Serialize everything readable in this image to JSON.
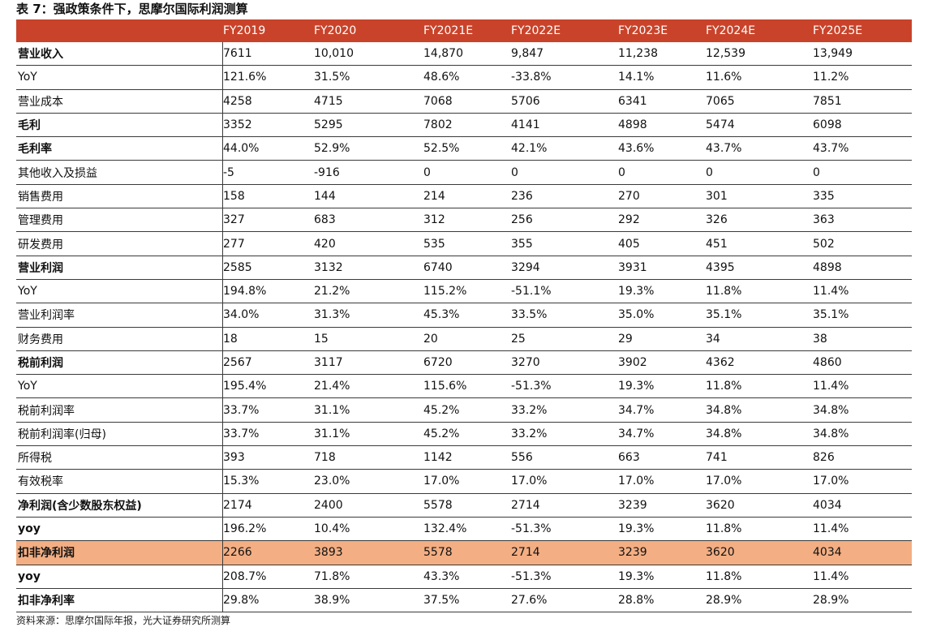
{
  "title": "表 7：强政策条件下，思摩尔国际利润测算",
  "source": "资料来源：思摩尔国际年报，光大证券研究所测算",
  "colors": {
    "header_bg": "#c9432a",
    "highlight_bg": "#f3ae83"
  },
  "table": {
    "columns": [
      "FY2019",
      "FY2020",
      "FY2021E",
      "FY2022E",
      "FY2023E",
      "FY2024E",
      "FY2025E"
    ],
    "rows": [
      {
        "label": "营业收入",
        "bold": true,
        "values": [
          "7611",
          "10,010",
          "14,870",
          "9,847",
          "11,238",
          "12,539",
          "13,949"
        ]
      },
      {
        "label": "YoY",
        "bold": false,
        "values": [
          "121.6%",
          "31.5%",
          "48.6%",
          "-33.8%",
          "14.1%",
          "11.6%",
          "11.2%"
        ]
      },
      {
        "label": "营业成本",
        "bold": false,
        "values": [
          "4258",
          "4715",
          "7068",
          "5706",
          "6341",
          "7065",
          "7851"
        ]
      },
      {
        "label": "毛利",
        "bold": true,
        "values": [
          "3352",
          "5295",
          "7802",
          "4141",
          "4898",
          "5474",
          "6098"
        ]
      },
      {
        "label": "毛利率",
        "bold": true,
        "values": [
          "44.0%",
          "52.9%",
          "52.5%",
          "42.1%",
          "43.6%",
          "43.7%",
          "43.7%"
        ]
      },
      {
        "label": "其他收入及损益",
        "bold": false,
        "values": [
          "-5",
          "-916",
          "0",
          "0",
          "0",
          "0",
          "0"
        ]
      },
      {
        "label": "销售费用",
        "bold": false,
        "values": [
          "158",
          "144",
          "214",
          "236",
          "270",
          "301",
          "335"
        ]
      },
      {
        "label": "管理费用",
        "bold": false,
        "values": [
          "327",
          "683",
          "312",
          "256",
          "292",
          "326",
          "363"
        ]
      },
      {
        "label": "研发费用",
        "bold": false,
        "values": [
          "277",
          "420",
          "535",
          "355",
          "405",
          "451",
          "502"
        ]
      },
      {
        "label": "营业利润",
        "bold": true,
        "values": [
          "2585",
          "3132",
          "6740",
          "3294",
          "3931",
          "4395",
          "4898"
        ]
      },
      {
        "label": "YoY",
        "bold": false,
        "values": [
          "194.8%",
          "21.2%",
          "115.2%",
          "-51.1%",
          "19.3%",
          "11.8%",
          "11.4%"
        ]
      },
      {
        "label": "营业利润率",
        "bold": false,
        "values": [
          "34.0%",
          "31.3%",
          "45.3%",
          "33.5%",
          "35.0%",
          "35.1%",
          "35.1%"
        ]
      },
      {
        "label": "财务费用",
        "bold": false,
        "values": [
          "18",
          "15",
          "20",
          "25",
          "29",
          "34",
          "38"
        ]
      },
      {
        "label": "税前利润",
        "bold": true,
        "values": [
          "2567",
          "3117",
          "6720",
          "3270",
          "3902",
          "4362",
          "4860"
        ]
      },
      {
        "label": "YoY",
        "bold": false,
        "values": [
          "195.4%",
          "21.4%",
          "115.6%",
          "-51.3%",
          "19.3%",
          "11.8%",
          "11.4%"
        ]
      },
      {
        "label": "税前利润率",
        "bold": false,
        "values": [
          "33.7%",
          "31.1%",
          "45.2%",
          "33.2%",
          "34.7%",
          "34.8%",
          "34.8%"
        ]
      },
      {
        "label": "税前利润率(归母)",
        "bold": false,
        "values": [
          "33.7%",
          "31.1%",
          "45.2%",
          "33.2%",
          "34.7%",
          "34.8%",
          "34.8%"
        ]
      },
      {
        "label": "所得税",
        "bold": false,
        "values": [
          "393",
          "718",
          "1142",
          "556",
          "663",
          "741",
          "826"
        ]
      },
      {
        "label": "有效税率",
        "bold": false,
        "values": [
          "15.3%",
          "23.0%",
          "17.0%",
          "17.0%",
          "17.0%",
          "17.0%",
          "17.0%"
        ]
      },
      {
        "label": "净利润(含少数股东权益)",
        "bold": true,
        "values": [
          "2174",
          "2400",
          "5578",
          "2714",
          "3239",
          "3620",
          "4034"
        ]
      },
      {
        "label": "yoy",
        "bold": true,
        "values": [
          "196.2%",
          "10.4%",
          "132.4%",
          "-51.3%",
          "19.3%",
          "11.8%",
          "11.4%"
        ]
      },
      {
        "label": "扣非净利润",
        "bold": true,
        "highlight": true,
        "values": [
          "2266",
          "3893",
          "5578",
          "2714",
          "3239",
          "3620",
          "4034"
        ]
      },
      {
        "label": "yoy",
        "bold": true,
        "values": [
          "208.7%",
          "71.8%",
          "43.3%",
          "-51.3%",
          "19.3%",
          "11.8%",
          "11.4%"
        ]
      },
      {
        "label": "扣非净利率",
        "bold": true,
        "values": [
          "29.8%",
          "38.9%",
          "37.5%",
          "27.6%",
          "28.8%",
          "28.9%",
          "28.9%"
        ]
      }
    ]
  }
}
